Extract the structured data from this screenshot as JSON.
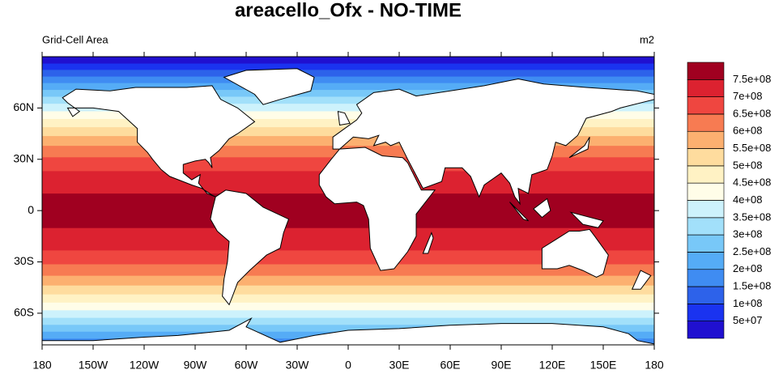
{
  "title": "areacello_Ofx - NO-TIME",
  "left_string": "Grid-Cell Area",
  "right_string": "m2",
  "map": {
    "xlim": [
      -180,
      180
    ],
    "ylim": [
      -78.5,
      90
    ],
    "xticks": [
      {
        "value": -180,
        "label": "180"
      },
      {
        "value": -150,
        "label": "150W"
      },
      {
        "value": -120,
        "label": "120W"
      },
      {
        "value": -90,
        "label": "90W"
      },
      {
        "value": -60,
        "label": "60W"
      },
      {
        "value": -30,
        "label": "30W"
      },
      0,
      {
        "value": 30,
        "label": "30E"
      },
      {
        "value": 60,
        "label": "60E"
      },
      {
        "value": 90,
        "label": "90E"
      },
      {
        "value": 120,
        "label": "120E"
      },
      {
        "value": 150,
        "label": "150E"
      },
      {
        "value": 180,
        "label": "180"
      }
    ],
    "yticks": [
      {
        "value": 60,
        "label": "60N"
      },
      {
        "value": 30,
        "label": "30N"
      },
      0,
      {
        "value": -30,
        "label": "30S"
      },
      {
        "value": -60,
        "label": "60S"
      }
    ]
  },
  "colorbar": {
    "levels": [
      {
        "value": 50000000,
        "label": "5e+07"
      },
      {
        "value": 100000000,
        "label": "1e+08"
      },
      {
        "value": 150000000,
        "label": "1.5e+08"
      },
      {
        "value": 200000000,
        "label": "2e+08"
      },
      {
        "value": 250000000,
        "label": "2.5e+08"
      },
      {
        "value": 300000000,
        "label": "3e+08"
      },
      {
        "value": 350000000,
        "label": "3.5e+08"
      },
      {
        "value": 400000000,
        "label": "4e+08"
      },
      {
        "value": 450000000,
        "label": "4.5e+08"
      },
      {
        "value": 500000000,
        "label": "5e+08"
      },
      {
        "value": 550000000,
        "label": "5.5e+08"
      },
      {
        "value": 600000000,
        "label": "6e+08"
      },
      {
        "value": 650000000,
        "label": "6.5e+08"
      },
      {
        "value": 700000000,
        "label": "7e+08"
      },
      {
        "value": 750000000,
        "label": "7.5e+08"
      }
    ],
    "colors": [
      "#2010d0",
      "#1a33f0",
      "#2d62ea",
      "#3f8cf2",
      "#55acf6",
      "#78c8f8",
      "#a2e0fa",
      "#cdf2fc",
      "#fffde8",
      "#fff2c4",
      "#fedc9e",
      "#fcb070",
      "#f77b52",
      "#ef4640",
      "#dc2230",
      "#a00020"
    ]
  }
}
